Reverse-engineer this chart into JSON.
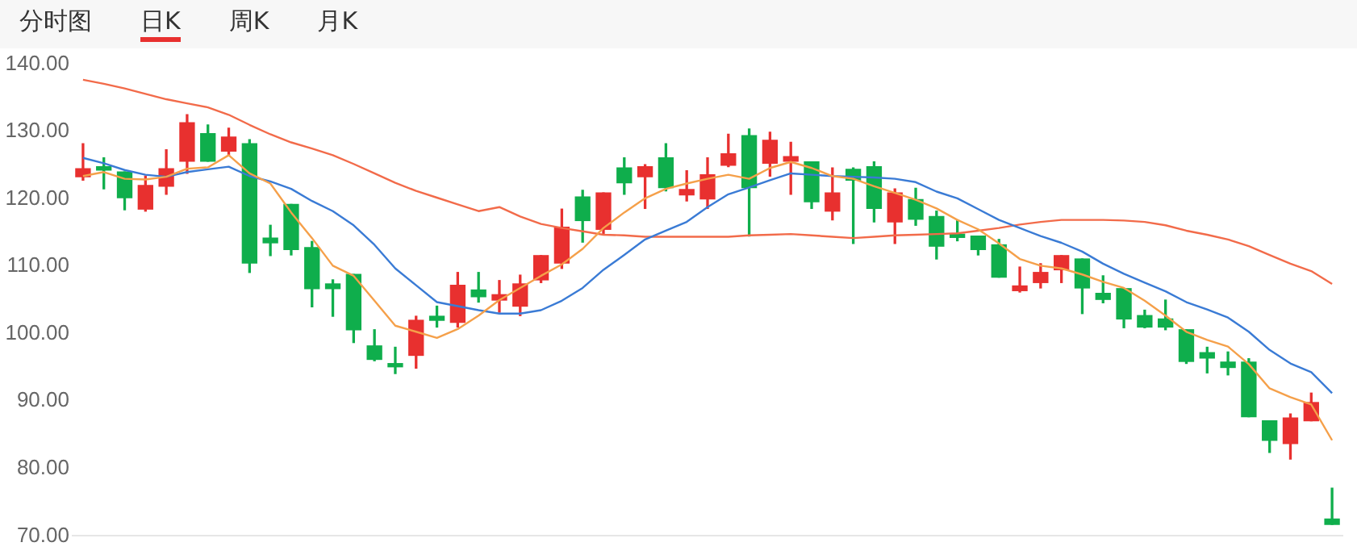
{
  "chart_data": {
    "type": "candlestick",
    "annotations": [
      "分时图",
      "日K",
      "周K",
      "月K"
    ],
    "categories": [
      null,
      null,
      null,
      null,
      null,
      null,
      null,
      null,
      null,
      null,
      null,
      null,
      null,
      null,
      null,
      null,
      null,
      null,
      null,
      null,
      null,
      null,
      null,
      null,
      null,
      null,
      null,
      null,
      null,
      null,
      null,
      null,
      null,
      null,
      null,
      null,
      null,
      null,
      null,
      null,
      null,
      null,
      null,
      null,
      null,
      null,
      null,
      null,
      null,
      null,
      null,
      null,
      null,
      null,
      null,
      null,
      null,
      null,
      null,
      null,
      null
    ],
    "ohlc": [
      [
        123.3,
        128.2,
        122.8,
        124.5
      ],
      [
        124.8,
        126.1,
        121.5,
        124.3
      ],
      [
        124.0,
        124.0,
        118.4,
        120.2
      ],
      [
        118.5,
        123.4,
        118.2,
        122.0
      ],
      [
        121.9,
        127.3,
        120.7,
        124.5
      ],
      [
        125.6,
        132.5,
        123.8,
        131.3
      ],
      [
        129.7,
        131.0,
        125.6,
        125.6
      ],
      [
        127.1,
        130.5,
        126.5,
        129.2
      ],
      [
        128.2,
        128.8,
        109.1,
        110.5
      ],
      [
        114.2,
        116.1,
        111.6,
        113.5
      ],
      [
        119.2,
        119.2,
        111.7,
        112.5
      ],
      [
        112.8,
        113.7,
        104.0,
        106.7
      ],
      [
        107.4,
        108.0,
        102.6,
        106.7
      ],
      [
        108.8,
        108.8,
        98.7,
        100.6
      ],
      [
        98.2,
        100.6,
        96.0,
        96.2
      ],
      [
        95.5,
        98.0,
        94.1,
        95.1
      ],
      [
        96.8,
        102.6,
        94.9,
        102.0
      ],
      [
        102.6,
        104.1,
        101.0,
        102.0
      ],
      [
        101.7,
        109.1,
        101.0,
        107.2
      ],
      [
        106.5,
        109.1,
        104.7,
        105.5
      ],
      [
        105.0,
        107.9,
        103.2,
        105.8
      ],
      [
        104.1,
        108.7,
        102.7,
        107.4
      ],
      [
        108.0,
        111.6,
        107.6,
        111.6
      ],
      [
        110.5,
        118.5,
        109.7,
        115.8
      ],
      [
        120.3,
        121.3,
        113.6,
        116.8
      ],
      [
        115.5,
        120.9,
        114.9,
        120.9
      ],
      [
        124.6,
        126.1,
        120.7,
        122.4
      ],
      [
        123.3,
        125.1,
        118.6,
        124.8
      ],
      [
        126.1,
        128.2,
        121.2,
        121.7
      ],
      [
        120.6,
        124.2,
        119.7,
        121.4
      ],
      [
        120.0,
        126.1,
        118.6,
        123.6
      ],
      [
        125.0,
        129.6,
        124.8,
        126.7
      ],
      [
        129.4,
        130.4,
        114.5,
        121.7
      ],
      [
        125.3,
        129.9,
        123.4,
        128.7
      ],
      [
        125.6,
        128.4,
        120.7,
        126.3
      ],
      [
        125.5,
        125.5,
        118.6,
        119.6
      ],
      [
        118.2,
        124.6,
        116.9,
        120.9
      ],
      [
        124.4,
        124.6,
        113.4,
        122.8
      ],
      [
        124.8,
        125.5,
        116.6,
        118.6
      ],
      [
        116.6,
        121.5,
        113.4,
        120.9
      ],
      [
        119.9,
        121.6,
        116.1,
        117.0
      ],
      [
        117.4,
        118.2,
        111.1,
        113.0
      ],
      [
        114.7,
        116.9,
        113.8,
        114.3
      ],
      [
        114.5,
        114.5,
        111.7,
        112.5
      ],
      [
        113.2,
        114.0,
        108.4,
        108.4
      ],
      [
        106.4,
        109.9,
        106.2,
        107.1
      ],
      [
        107.6,
        110.4,
        106.8,
        109.1
      ],
      [
        109.5,
        111.6,
        107.6,
        111.6
      ],
      [
        111.1,
        111.1,
        103.0,
        106.8
      ],
      [
        106.0,
        108.6,
        104.6,
        105.1
      ],
      [
        106.7,
        106.7,
        100.9,
        102.2
      ],
      [
        102.7,
        103.5,
        100.9,
        101.0
      ],
      [
        102.2,
        105.0,
        100.6,
        101.0
      ],
      [
        100.6,
        100.6,
        95.6,
        95.9
      ],
      [
        97.2,
        98.0,
        94.2,
        96.4
      ],
      [
        95.8,
        97.3,
        93.9,
        95.0
      ],
      [
        95.8,
        96.3,
        87.7,
        87.7
      ],
      [
        87.1,
        87.1,
        82.4,
        84.2
      ],
      [
        83.7,
        88.1,
        81.4,
        87.5
      ],
      [
        87.1,
        91.2,
        87.1,
        89.8
      ],
      [
        72.5,
        77.1,
        71.7,
        71.7
      ]
    ],
    "colors": [
      "#e8302f",
      "#0fae4c",
      "#0fae4c",
      "#e8302f",
      "#e8302f",
      "#e8302f",
      "#0fae4c",
      "#e8302f",
      "#0fae4c",
      "#0fae4c",
      "#0fae4c",
      "#0fae4c",
      "#0fae4c",
      "#0fae4c",
      "#0fae4c",
      "#0fae4c",
      "#e8302f",
      "#0fae4c",
      "#e8302f",
      "#0fae4c",
      "#e8302f",
      "#e8302f",
      "#e8302f",
      "#e8302f",
      "#0fae4c",
      "#e8302f",
      "#0fae4c",
      "#e8302f",
      "#0fae4c",
      "#e8302f",
      "#e8302f",
      "#e8302f",
      "#0fae4c",
      "#e8302f",
      "#e8302f",
      "#0fae4c",
      "#e8302f",
      "#0fae4c",
      "#0fae4c",
      "#e8302f",
      "#0fae4c",
      "#0fae4c",
      "#0fae4c",
      "#0fae4c",
      "#0fae4c",
      "#e8302f",
      "#e8302f",
      "#e8302f",
      "#0fae4c",
      "#0fae4c",
      "#0fae4c",
      "#0fae4c",
      "#0fae4c",
      "#0fae4c",
      "#0fae4c",
      "#0fae4c",
      "#0fae4c",
      "#0fae4c",
      "#e8302f",
      "#e8302f",
      "#0fae4c"
    ],
    "series": [
      {
        "type": "line",
        "color": "#f5a04a",
        "values": [
          123.4,
          124.0,
          123.0,
          122.9,
          123.3,
          124.5,
          124.7,
          126.5,
          123.8,
          122.3,
          118.0,
          114.2,
          110.1,
          108.6,
          104.9,
          101.2,
          100.3,
          99.4,
          100.7,
          102.7,
          105.0,
          106.8,
          108.6,
          110.3,
          112.6,
          115.7,
          118.0,
          120.1,
          121.5,
          122.3,
          123.0,
          123.6,
          123.0,
          124.6,
          125.5,
          124.6,
          123.4,
          123.0,
          121.9,
          120.9,
          119.9,
          118.6,
          116.9,
          115.5,
          113.4,
          111.1,
          110.1,
          109.7,
          108.8,
          107.7,
          106.8,
          104.9,
          102.7,
          100.3,
          99.1,
          98.1,
          95.5,
          91.9,
          90.6,
          89.5,
          84.2
        ]
      },
      {
        "type": "line",
        "color": "#3a7bd5",
        "values": [
          126.1,
          125.3,
          124.3,
          123.6,
          123.3,
          124.0,
          124.4,
          124.8,
          123.4,
          122.6,
          121.5,
          119.7,
          118.2,
          116.1,
          113.2,
          109.7,
          107.2,
          104.7,
          104.1,
          103.5,
          103.0,
          103.0,
          103.5,
          104.9,
          106.8,
          109.5,
          111.7,
          114.0,
          115.3,
          116.6,
          118.8,
          120.7,
          121.7,
          122.8,
          123.8,
          123.6,
          123.4,
          123.3,
          123.2,
          123.0,
          122.5,
          121.1,
          120.1,
          118.5,
          116.9,
          115.7,
          114.5,
          113.5,
          112.2,
          110.4,
          108.9,
          107.6,
          106.3,
          104.7,
          103.6,
          102.4,
          100.3,
          97.6,
          95.6,
          94.3,
          91.2
        ]
      },
      {
        "type": "line",
        "color": "#f26b4a",
        "values": [
          137.7,
          137.1,
          136.4,
          135.6,
          134.8,
          134.2,
          133.6,
          132.5,
          131.0,
          129.6,
          128.4,
          127.5,
          126.5,
          125.2,
          123.8,
          122.4,
          121.2,
          120.2,
          119.2,
          118.2,
          118.8,
          117.4,
          116.3,
          115.7,
          115.2,
          114.7,
          114.6,
          114.4,
          114.4,
          114.4,
          114.4,
          114.4,
          114.6,
          114.7,
          114.8,
          114.6,
          114.4,
          114.2,
          114.4,
          114.6,
          114.7,
          114.8,
          114.9,
          115.3,
          115.7,
          116.2,
          116.6,
          116.9,
          116.9,
          116.9,
          116.8,
          116.6,
          116.1,
          115.3,
          114.7,
          114.0,
          113.0,
          111.7,
          110.4,
          109.3,
          107.4
        ]
      }
    ],
    "ylim": [
      70,
      140
    ],
    "yticks": [
      {
        "value": 70,
        "label": "70.00"
      },
      {
        "value": 80,
        "label": "80.00"
      },
      {
        "value": 90,
        "label": "90.00"
      },
      {
        "value": 100,
        "label": "100.00"
      },
      {
        "value": 110,
        "label": "110.00"
      },
      {
        "value": 120,
        "label": "120.00"
      },
      {
        "value": 130,
        "label": "130.00"
      },
      {
        "value": 140,
        "label": "140.00"
      }
    ],
    "tick_labels": "y",
    "grid": false,
    "legend": false
  }
}
